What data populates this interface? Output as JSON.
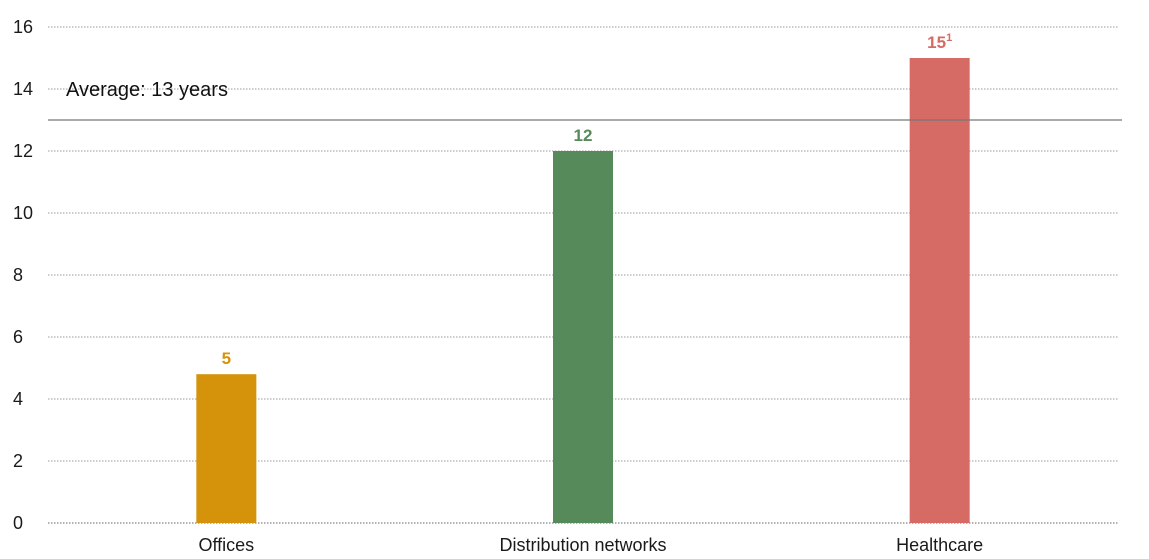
{
  "chart_data": {
    "type": "bar",
    "categories": [
      "Offices",
      "Distribution networks",
      "Healthcare"
    ],
    "values": [
      4.8,
      12,
      15
    ],
    "data_labels": [
      "5",
      "12",
      "15"
    ],
    "data_label_superscripts": [
      "",
      "",
      "1"
    ],
    "colors": [
      "#d4930a",
      "#568a5a",
      "#d66a65"
    ],
    "ylim": [
      0,
      16
    ],
    "yticks": [
      0,
      2,
      4,
      6,
      8,
      10,
      12,
      14,
      16
    ],
    "grid": true,
    "average": {
      "value": 13,
      "label": "Average: 13 years"
    }
  }
}
